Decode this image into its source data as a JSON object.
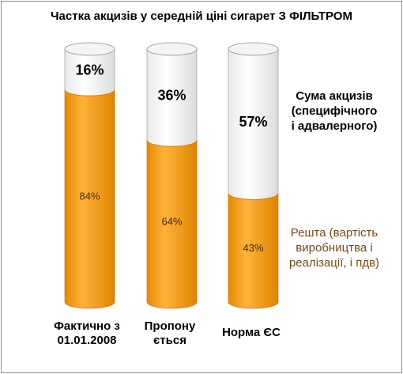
{
  "chart_data": {
    "type": "bar",
    "stacked": true,
    "normalized_percent": true,
    "title": "Частка акцизів у середній ціні сигарет З ФІЛЬТРОМ",
    "xlabel": "",
    "ylabel": "",
    "ylim": [
      0,
      100
    ],
    "grid": false,
    "categories": [
      "Фактично з 01.01.2008",
      "Пропону ється",
      "Норма ЄС"
    ],
    "category_lines": [
      [
        "Фактично з",
        "01.01.2008"
      ],
      [
        "Пропону",
        "ється"
      ],
      [
        "Норма ЄС"
      ]
    ],
    "series": [
      {
        "id": "rest",
        "name": "Решта (вартість виробництва і реалізації, і пдв)",
        "name_lines": [
          "Решта (вартість",
          "виробництва і",
          "реалізації, і пдв)"
        ],
        "values": [
          84,
          64,
          43
        ],
        "labels": [
          "84%",
          "64%",
          "43%"
        ],
        "color": "#f39a0f"
      },
      {
        "id": "excise",
        "name": "Сума акцизів (специфічного і адвалерного)",
        "name_lines": [
          "Сума акцизів",
          "(специфічного",
          "і адвалерного)"
        ],
        "values": [
          16,
          36,
          57
        ],
        "labels": [
          "16%",
          "36%",
          "57%"
        ],
        "color": "#ffffff"
      }
    ],
    "legend_position": "right"
  },
  "colors": {
    "rest": "#f39a0f",
    "rest_dark": "#c86f00",
    "excise": "#ffffff",
    "outline": "#8c8c8c",
    "legend_rest_text": "#7a4a12"
  }
}
